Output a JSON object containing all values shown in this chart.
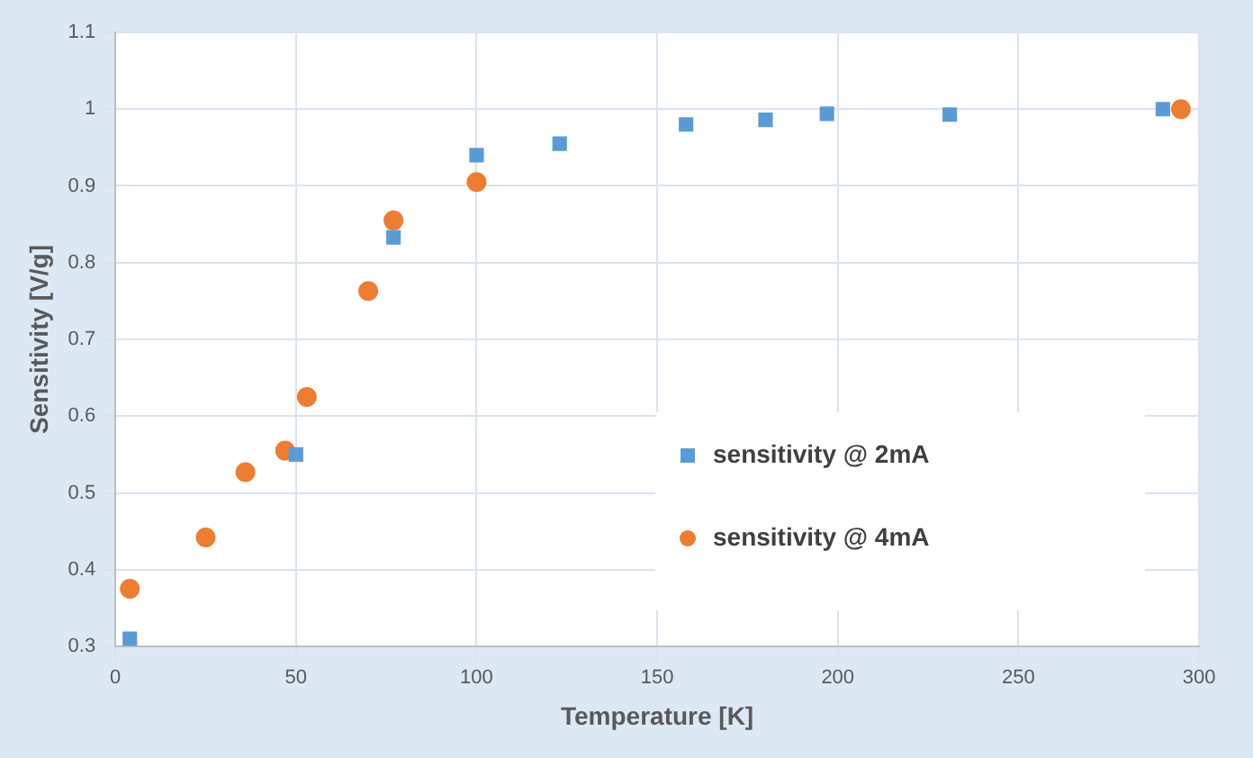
{
  "chart_data": {
    "type": "scatter",
    "xlabel": "Temperature [K]",
    "ylabel": "Sensitivity [V/g]",
    "xlim": [
      0,
      300
    ],
    "xticks": [
      0,
      50,
      100,
      150,
      200,
      250,
      300
    ],
    "ylim": [
      0.3,
      1.1
    ],
    "yticks": [
      0.3,
      0.4,
      0.5,
      0.6,
      0.7,
      0.8,
      0.9,
      1,
      1.1
    ],
    "grid": true,
    "legend": "bottom right",
    "series": [
      {
        "name": "sensitivity @ 2mA",
        "color": "#5b9bd5",
        "marker": "square",
        "x": [
          4,
          50,
          77,
          100,
          123,
          158,
          180,
          197,
          231,
          290
        ],
        "values": [
          0.31,
          0.55,
          0.833,
          0.94,
          0.955,
          0.98,
          0.986,
          0.994,
          0.993,
          1.0
        ]
      },
      {
        "name": "sensitivity @ 4mA",
        "color": "#ed7d31",
        "marker": "circle",
        "x": [
          4,
          25,
          36,
          47,
          53,
          70,
          77,
          100,
          295
        ],
        "values": [
          0.375,
          0.442,
          0.527,
          0.555,
          0.625,
          0.763,
          0.855,
          0.905,
          1.0
        ]
      }
    ]
  }
}
